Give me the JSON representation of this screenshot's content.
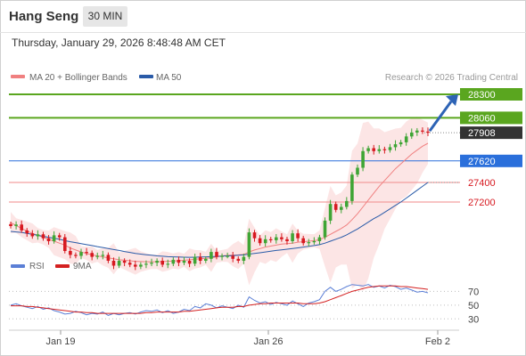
{
  "header": {
    "title": "Hang Seng",
    "timeframe": "30 MIN",
    "datetime": "Thursday, January 29, 2026 8:48:48 AM CET"
  },
  "legend": {
    "ma20_label": "MA 20 + Bollinger Bands",
    "ma50_label": "MA 50",
    "credit": "Research © 2026 Trading Central",
    "rsi_label": "RSI",
    "ma9_label": "9MA"
  },
  "colors": {
    "up": "#3fa535",
    "down": "#d71920",
    "ma20": "#f08080",
    "ma50": "#2a5ba8",
    "resistance": "#5aa61f",
    "pivot": "#2a6fdb",
    "support": "#f08a8a",
    "last": "#333333",
    "rsi": "#5b7fd6",
    "rsi_ma": "#d42020",
    "arrow": "#2d63b5"
  },
  "chart_data": [
    {
      "type": "candlestick",
      "title": "Hang Seng",
      "timeframe": "30 MIN",
      "x_ticks": [
        "Jan 19",
        "Jan 26",
        "Feb 2"
      ],
      "ylim": [
        26700,
        28400
      ],
      "price_levels": [
        {
          "label": "28300",
          "value": 28300,
          "kind": "resistance"
        },
        {
          "label": "28060",
          "value": 28060,
          "kind": "resistance"
        },
        {
          "label": "27908",
          "value": 27908,
          "kind": "last"
        },
        {
          "label": "27620",
          "value": 27620,
          "kind": "pivot"
        },
        {
          "label": "27400",
          "value": 27400,
          "kind": "support"
        },
        {
          "label": "27200",
          "value": 27200,
          "kind": "support"
        }
      ],
      "closes": [
        26955,
        26970,
        26910,
        26880,
        26850,
        26870,
        26830,
        26800,
        26860,
        26840,
        26700,
        26660,
        26650,
        26690,
        26680,
        26640,
        26650,
        26660,
        26600,
        26550,
        26600,
        26580,
        26560,
        26540,
        26560,
        26570,
        26580,
        26600,
        26560,
        26570,
        26610,
        26580,
        26600,
        26570,
        26640,
        26600,
        26620,
        26690,
        26640,
        26650,
        26650,
        26620,
        26600,
        26640,
        26890,
        26830,
        26780,
        26820,
        26810,
        26840,
        26820,
        26800,
        26880,
        26830,
        26780,
        26790,
        26800,
        26840,
        27010,
        27180,
        27120,
        27150,
        27210,
        27480,
        27550,
        27720,
        27750,
        27720,
        27740,
        27730,
        27760,
        27790,
        27810,
        27870,
        27910,
        27930,
        27920,
        27908
      ],
      "ma20": [
        26990,
        26960,
        26930,
        26905,
        26880,
        26860,
        26840,
        26820,
        26800,
        26780,
        26760,
        26730,
        26710,
        26690,
        26675,
        26660,
        26650,
        26640,
        26630,
        26620,
        26610,
        26605,
        26600,
        26595,
        26592,
        26590,
        26590,
        26590,
        26592,
        26595,
        26598,
        26600,
        26605,
        26610,
        26615,
        26620,
        26625,
        26630,
        26640,
        26650,
        26655,
        26658,
        26660,
        26665,
        26690,
        26710,
        26725,
        26740,
        26750,
        26760,
        26770,
        26775,
        26780,
        26790,
        26795,
        26800,
        26805,
        26815,
        26840,
        26870,
        26900,
        26930,
        26965,
        27020,
        27080,
        27150,
        27220,
        27290,
        27360,
        27420,
        27480,
        27540,
        27590,
        27640,
        27690,
        27730,
        27770,
        27800
      ],
      "ma50": [
        26900,
        26895,
        26890,
        26880,
        26870,
        26860,
        26850,
        26840,
        26830,
        26820,
        26805,
        26795,
        26785,
        26775,
        26765,
        26755,
        26745,
        26735,
        26725,
        26715,
        26705,
        26695,
        26685,
        26675,
        26668,
        26662,
        26656,
        26650,
        26646,
        26642,
        26640,
        26638,
        26636,
        26635,
        26636,
        26638,
        26640,
        26642,
        26645,
        26648,
        26650,
        26653,
        26656,
        26660,
        26668,
        26675,
        26682,
        26690,
        26697,
        26705,
        26712,
        26718,
        26725,
        26732,
        26740,
        26747,
        26755,
        26765,
        26780,
        26800,
        26820,
        26840,
        26865,
        26895,
        26925,
        26960,
        26995,
        27030,
        27060,
        27095,
        27130,
        27165,
        27200,
        27240,
        27280,
        27320,
        27360,
        27400
      ]
    },
    {
      "type": "line",
      "title": "RSI",
      "ylim": [
        20,
        90
      ],
      "y_ticks": [
        70,
        50,
        30
      ],
      "series": [
        {
          "name": "RSI",
          "values": [
            50,
            52,
            49,
            47,
            45,
            48,
            44,
            46,
            42,
            40,
            37,
            38,
            41,
            39,
            36,
            38,
            37,
            40,
            35,
            38,
            36,
            38,
            39,
            37,
            40,
            42,
            41,
            43,
            39,
            42,
            38,
            40,
            44,
            42,
            48,
            46,
            52,
            50,
            46,
            49,
            47,
            45,
            50,
            47,
            62,
            57,
            53,
            55,
            51,
            54,
            52,
            50,
            56,
            52,
            48,
            53,
            55,
            58,
            70,
            76,
            70,
            73,
            77,
            80,
            79,
            78,
            80,
            76,
            78,
            75,
            79,
            77,
            73,
            75,
            72,
            69,
            70,
            68
          ]
        },
        {
          "name": "9MA",
          "values": [
            49,
            49,
            49,
            48,
            48,
            47,
            46,
            45,
            44,
            43,
            42,
            41,
            40,
            40,
            39,
            39,
            38,
            38,
            38,
            38,
            38,
            38,
            38,
            38,
            38,
            39,
            39,
            40,
            40,
            40,
            40,
            40,
            41,
            41,
            42,
            43,
            44,
            45,
            46,
            47,
            47,
            47,
            48,
            48,
            50,
            51,
            52,
            52,
            53,
            53,
            53,
            53,
            53,
            53,
            52,
            52,
            52,
            53,
            55,
            58,
            61,
            64,
            67,
            70,
            72,
            74,
            76,
            77,
            78,
            78,
            78,
            78,
            77,
            77,
            76,
            75,
            74,
            73
          ]
        }
      ]
    }
  ]
}
